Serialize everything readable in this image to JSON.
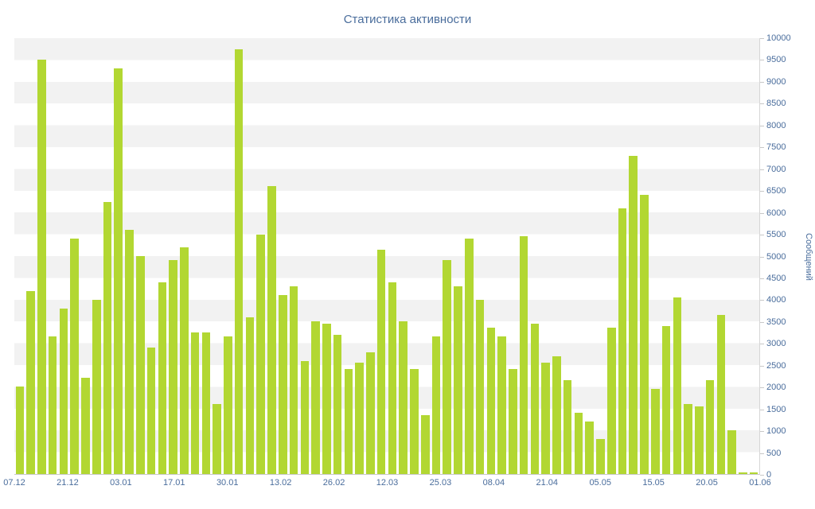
{
  "chart_data": {
    "type": "bar",
    "title": "Статистика активности",
    "xlabel": "",
    "ylabel": "Сообщений",
    "ylim": [
      0,
      10000
    ],
    "ytick_interval": 500,
    "grid": "alternating-horizontal-bands",
    "legend": "none",
    "bar_color": "#b2d732",
    "text_color": "#4a6d9c",
    "band_color": "#f2f2f2",
    "xtick_labels": [
      "07.12",
      "21.12",
      "03.01",
      "17.01",
      "30.01",
      "13.02",
      "26.02",
      "12.03",
      "25.03",
      "08.04",
      "21.04",
      "05.05",
      "15.05",
      "20.05",
      "01.06"
    ],
    "values": [
      2000,
      4200,
      9500,
      3150,
      3800,
      5400,
      2200,
      4000,
      6250,
      9300,
      5600,
      5000,
      2900,
      4400,
      4900,
      5200,
      3250,
      3250,
      1600,
      3150,
      9750,
      3600,
      5500,
      6600,
      4100,
      4300,
      2600,
      3500,
      3450,
      3200,
      2400,
      2550,
      2800,
      5150,
      4400,
      3500,
      2400,
      1350,
      3150,
      4900,
      4300,
      5400,
      4000,
      3350,
      3150,
      2400,
      5450,
      3450,
      2550,
      2700,
      2150,
      1400,
      1200,
      800,
      3350,
      6100,
      7300,
      6400,
      1950,
      3400,
      4050,
      1600,
      1550,
      2150,
      3650,
      1000,
      30,
      30
    ]
  }
}
